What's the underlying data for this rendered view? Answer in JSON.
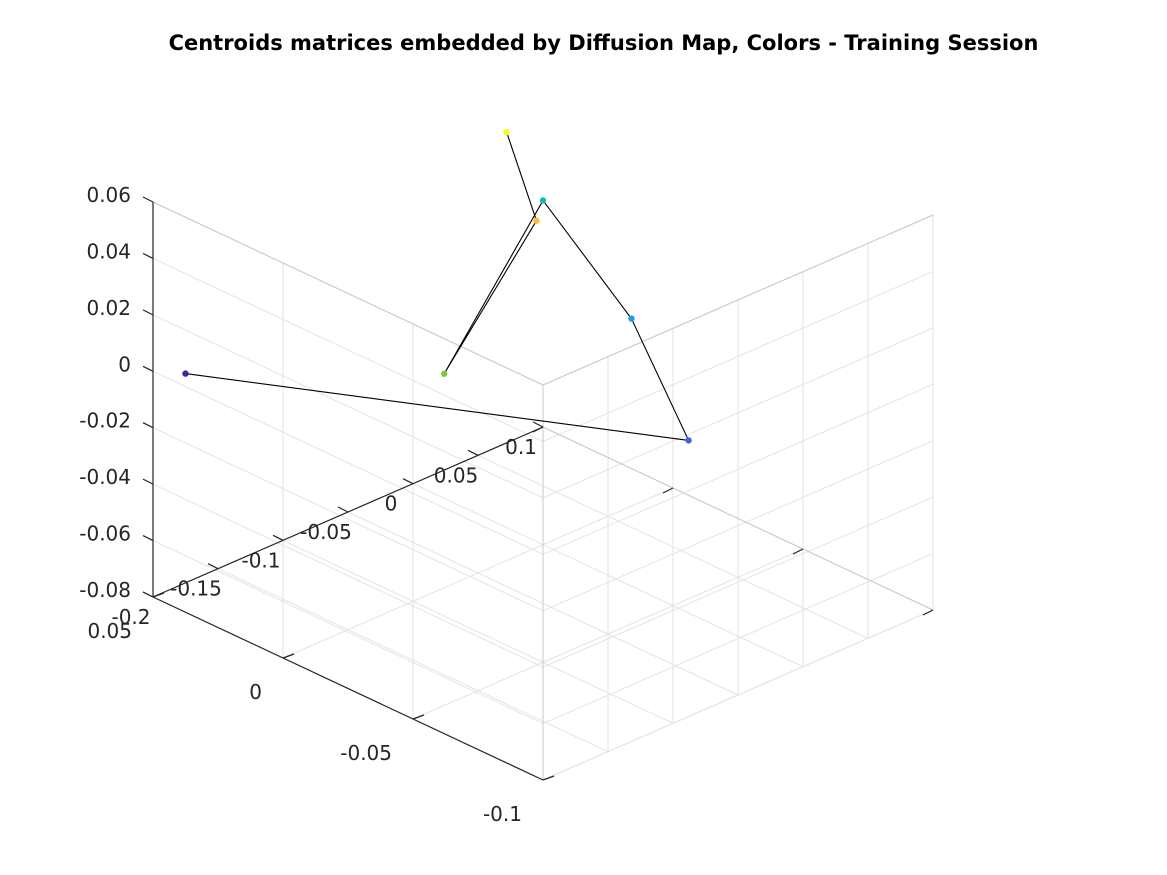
{
  "chart_data": {
    "type": "scatter",
    "subtype": "3d-line-with-markers",
    "title": "Centroids matrices embedded by Diffusion Map, Colors - Training Session",
    "xlabel": "",
    "ylabel": "",
    "zlabel": "",
    "xlim": [
      -0.2,
      0.1
    ],
    "ylim": [
      -0.1,
      0.05
    ],
    "zlim": [
      -0.08,
      0.06
    ],
    "x_ticks": [
      "-0.2",
      "-0.15",
      "-0.1",
      "-0.05",
      "0",
      "0.05",
      "0.1"
    ],
    "y_ticks": [
      "-0.1",
      "-0.05",
      "0",
      "0.05"
    ],
    "z_ticks": [
      "-0.08",
      "-0.06",
      "-0.04",
      "-0.02",
      "0",
      "0.02",
      "0.04",
      "0.06"
    ],
    "grid": true,
    "box": "three back panes",
    "line_color": "#000000",
    "points": [
      {
        "x": -0.177,
        "y": 0.049,
        "z": -0.005,
        "color": "#3e26a8"
      },
      {
        "x": -0.002,
        "y": -0.057,
        "z": -0.018,
        "color": "#4760dd"
      },
      {
        "x": 0.014,
        "y": -0.027,
        "z": 0.009,
        "color": "#1d9fe1"
      },
      {
        "x": 0.0,
        "y": 0.0,
        "z": 0.042,
        "color": "#13b9ad"
      },
      {
        "x": -0.05,
        "y": 0.013,
        "z": -0.015,
        "color": "#7fc841"
      },
      {
        "x": -0.003,
        "y": 0.001,
        "z": 0.035,
        "color": "#fcbb3e"
      },
      {
        "x": -0.014,
        "y": 0.007,
        "z": 0.066,
        "color": "#f9fa14"
      }
    ]
  }
}
